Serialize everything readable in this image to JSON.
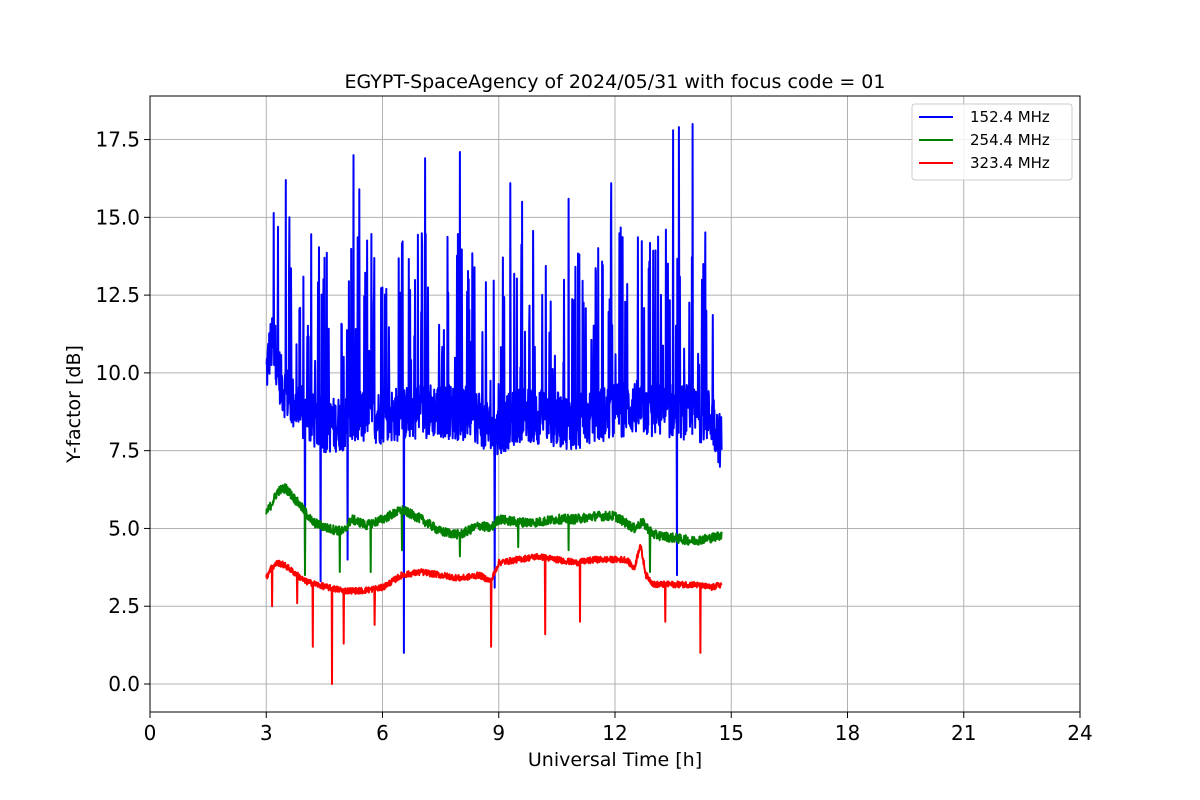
{
  "chart_data": {
    "type": "line",
    "title": "EGYPT-SpaceAgency of 2024/05/31 with focus code = 01",
    "xlabel": "Universal Time [h]",
    "ylabel": "Y-factor [dB]",
    "xlim": [
      0,
      24
    ],
    "ylim": [
      -0.9,
      18.9
    ],
    "xticks": [
      0,
      3,
      6,
      9,
      12,
      15,
      18,
      21,
      24
    ],
    "xtick_labels": [
      "0",
      "3",
      "6",
      "9",
      "12",
      "15",
      "18",
      "21",
      "24"
    ],
    "yticks": [
      0,
      2.5,
      5,
      7.5,
      10,
      12.5,
      15,
      17.5
    ],
    "ytick_labels": [
      "0.0",
      "2.5",
      "5.0",
      "7.5",
      "10.0",
      "12.5",
      "15.0",
      "17.5"
    ],
    "grid": true,
    "legend_position": "top-right",
    "x_range_of_data": [
      3.0,
      14.75
    ],
    "series": [
      {
        "name": "152.4 MHz",
        "color": "#0000ff",
        "x": [
          3.0,
          3.1,
          3.2,
          3.3,
          3.4,
          3.6,
          3.8,
          4.0,
          4.3,
          4.6,
          5.0,
          5.5,
          6.0,
          6.5,
          7.0,
          7.5,
          8.0,
          8.5,
          8.9,
          9.2,
          9.6,
          10.0,
          10.5,
          11.0,
          11.5,
          12.0,
          12.5,
          13.0,
          13.5,
          14.0,
          14.5,
          14.75
        ],
        "values": [
          10.0,
          10.8,
          11.0,
          10.2,
          9.6,
          9.2,
          8.8,
          8.6,
          8.4,
          8.3,
          8.4,
          8.6,
          8.6,
          8.7,
          8.8,
          8.8,
          8.7,
          8.6,
          8.0,
          8.4,
          8.7,
          8.6,
          8.5,
          8.4,
          8.6,
          8.8,
          8.9,
          8.8,
          8.8,
          8.7,
          8.6,
          7.7
        ],
        "peaks": [
          {
            "x": 3.3,
            "y": 14.7
          },
          {
            "x": 3.5,
            "y": 16.2
          },
          {
            "x": 3.6,
            "y": 15.0
          },
          {
            "x": 4.5,
            "y": 13.7
          },
          {
            "x": 5.25,
            "y": 17.0
          },
          {
            "x": 5.4,
            "y": 15.9
          },
          {
            "x": 7.1,
            "y": 16.9
          },
          {
            "x": 8.0,
            "y": 17.1
          },
          {
            "x": 8.9,
            "y": 16.0
          },
          {
            "x": 9.3,
            "y": 16.1
          },
          {
            "x": 9.6,
            "y": 15.5
          },
          {
            "x": 10.8,
            "y": 15.6
          },
          {
            "x": 11.9,
            "y": 16.1
          },
          {
            "x": 13.5,
            "y": 17.8
          },
          {
            "x": 13.65,
            "y": 17.9
          },
          {
            "x": 14.0,
            "y": 18.0
          }
        ],
        "dips": [
          {
            "x": 4.0,
            "y": 3.7
          },
          {
            "x": 4.4,
            "y": 3.3
          },
          {
            "x": 5.1,
            "y": 4.0
          },
          {
            "x": 6.55,
            "y": 1.0
          },
          {
            "x": 8.9,
            "y": 3.1
          },
          {
            "x": 13.6,
            "y": 3.5
          }
        ]
      },
      {
        "name": "254.4 MHz",
        "color": "#008000",
        "x": [
          3.0,
          3.1,
          3.3,
          3.5,
          3.7,
          3.9,
          4.2,
          4.6,
          5.0,
          5.2,
          5.6,
          6.0,
          6.5,
          7.0,
          7.5,
          8.0,
          8.5,
          8.8,
          9.0,
          9.5,
          10.0,
          10.5,
          11.0,
          11.5,
          12.0,
          12.5,
          12.7,
          13.0,
          13.5,
          14.0,
          14.5,
          14.75
        ],
        "values": [
          5.5,
          5.7,
          6.2,
          6.3,
          6.0,
          5.7,
          5.2,
          5.0,
          4.9,
          5.3,
          5.1,
          5.3,
          5.6,
          5.3,
          4.9,
          4.8,
          5.1,
          5.0,
          5.3,
          5.2,
          5.2,
          5.3,
          5.3,
          5.4,
          5.4,
          5.0,
          5.2,
          4.8,
          4.7,
          4.6,
          4.7,
          4.8
        ],
        "dips": [
          {
            "x": 4.0,
            "y": 3.5
          },
          {
            "x": 4.9,
            "y": 3.6
          },
          {
            "x": 5.7,
            "y": 3.6
          },
          {
            "x": 6.5,
            "y": 4.3
          },
          {
            "x": 8.0,
            "y": 4.1
          },
          {
            "x": 9.5,
            "y": 4.4
          },
          {
            "x": 10.8,
            "y": 4.3
          },
          {
            "x": 12.9,
            "y": 3.6
          }
        ]
      },
      {
        "name": "323.4 MHz",
        "color": "#ff0000",
        "x": [
          3.0,
          3.1,
          3.3,
          3.5,
          3.7,
          4.0,
          4.3,
          4.6,
          5.0,
          5.5,
          6.0,
          6.5,
          7.0,
          7.5,
          8.0,
          8.5,
          8.8,
          9.0,
          9.5,
          10.0,
          10.5,
          11.0,
          11.5,
          12.0,
          12.3,
          12.5,
          12.65,
          12.8,
          13.0,
          13.5,
          14.0,
          14.5,
          14.75
        ],
        "values": [
          3.4,
          3.7,
          3.9,
          3.8,
          3.6,
          3.3,
          3.2,
          3.1,
          3.0,
          3.0,
          3.1,
          3.5,
          3.6,
          3.5,
          3.4,
          3.5,
          3.3,
          3.9,
          4.0,
          4.1,
          4.0,
          3.9,
          4.0,
          4.0,
          4.0,
          3.7,
          4.5,
          3.5,
          3.2,
          3.2,
          3.2,
          3.1,
          3.2
        ],
        "dips": [
          {
            "x": 3.15,
            "y": 2.5
          },
          {
            "x": 3.8,
            "y": 2.6
          },
          {
            "x": 4.2,
            "y": 1.2
          },
          {
            "x": 4.7,
            "y": 0.0
          },
          {
            "x": 5.0,
            "y": 1.3
          },
          {
            "x": 5.8,
            "y": 1.9
          },
          {
            "x": 8.8,
            "y": 1.2
          },
          {
            "x": 10.2,
            "y": 1.6
          },
          {
            "x": 11.1,
            "y": 2.0
          },
          {
            "x": 13.3,
            "y": 2.0
          },
          {
            "x": 14.2,
            "y": 1.0
          }
        ]
      }
    ]
  }
}
